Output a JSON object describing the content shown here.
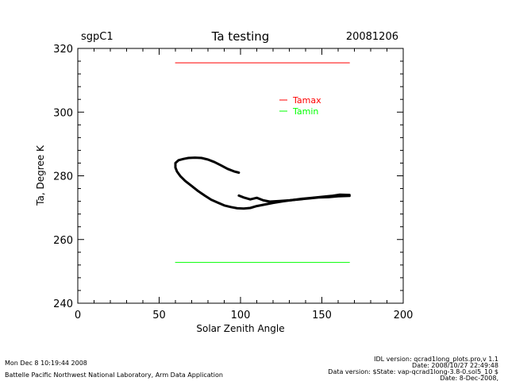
{
  "header": {
    "left": "sgpC1",
    "title": "Ta testing",
    "right": "20081206"
  },
  "chart_data": {
    "type": "line",
    "title": "Ta testing",
    "xlabel": "Solar Zenith Angle",
    "ylabel": "Ta, Degree K",
    "xlim": [
      0,
      200
    ],
    "ylim": [
      240,
      320
    ],
    "x_ticks": [
      "0",
      "50",
      "100",
      "150",
      "200"
    ],
    "y_ticks": [
      "240",
      "260",
      "280",
      "300",
      "320"
    ],
    "grid": false,
    "legend_position": "top-right",
    "series": [
      {
        "name": "Tamax",
        "color": "#ff0000",
        "x": [
          60,
          167
        ],
        "y": [
          315.5,
          315.5
        ]
      },
      {
        "name": "Tamin",
        "color": "#00ff00",
        "x": [
          60,
          167
        ],
        "y": [
          252.8,
          252.8
        ]
      },
      {
        "color": "#000000",
        "x": [
          99,
          96,
          92,
          88,
          84,
          80,
          76,
          72,
          68,
          65,
          62,
          60,
          60,
          61,
          63,
          66,
          70,
          74,
          78,
          82,
          86,
          90,
          94,
          98,
          102,
          106,
          110,
          115,
          120,
          126,
          132,
          138,
          144,
          150,
          156,
          161,
          167
        ],
        "y": [
          281,
          281.4,
          282.2,
          283.3,
          284.3,
          285.1,
          285.6,
          285.7,
          285.6,
          285.3,
          284.9,
          284,
          282.6,
          281.3,
          279.9,
          278.4,
          276.8,
          275.2,
          273.8,
          272.5,
          271.6,
          270.7,
          270.2,
          269.8,
          269.7,
          269.9,
          270.5,
          271,
          271.5,
          272,
          272.4,
          272.8,
          273.1,
          273.4,
          273.7,
          274.1,
          274
        ]
      },
      {
        "color": "#000000",
        "x": [
          99,
          102,
          106,
          110,
          114,
          118,
          124,
          130,
          136,
          142,
          148,
          154,
          160,
          167
        ],
        "y": [
          273.8,
          273.2,
          272.6,
          273.1,
          272.3,
          271.9,
          272.1,
          272.3,
          272.6,
          272.9,
          273.2,
          273.3,
          273.6,
          273.7
        ]
      }
    ]
  },
  "footer": {
    "left_line1": "Mon Dec  8 10:19:44 2008",
    "left_line2": "Battelle Pacific Northwest National Laboratory, Arm Data Application",
    "right_line1": "IDL version: qcrad1long_plots.pro,v 1.1",
    "right_line2": "Date: 2008/10/27 22:49:48",
    "right_line3": "Data version: $State: vap-qcrad1long-3.8-0.sol5_10 $",
    "right_line4": "Date: 8-Dec-2008,"
  }
}
